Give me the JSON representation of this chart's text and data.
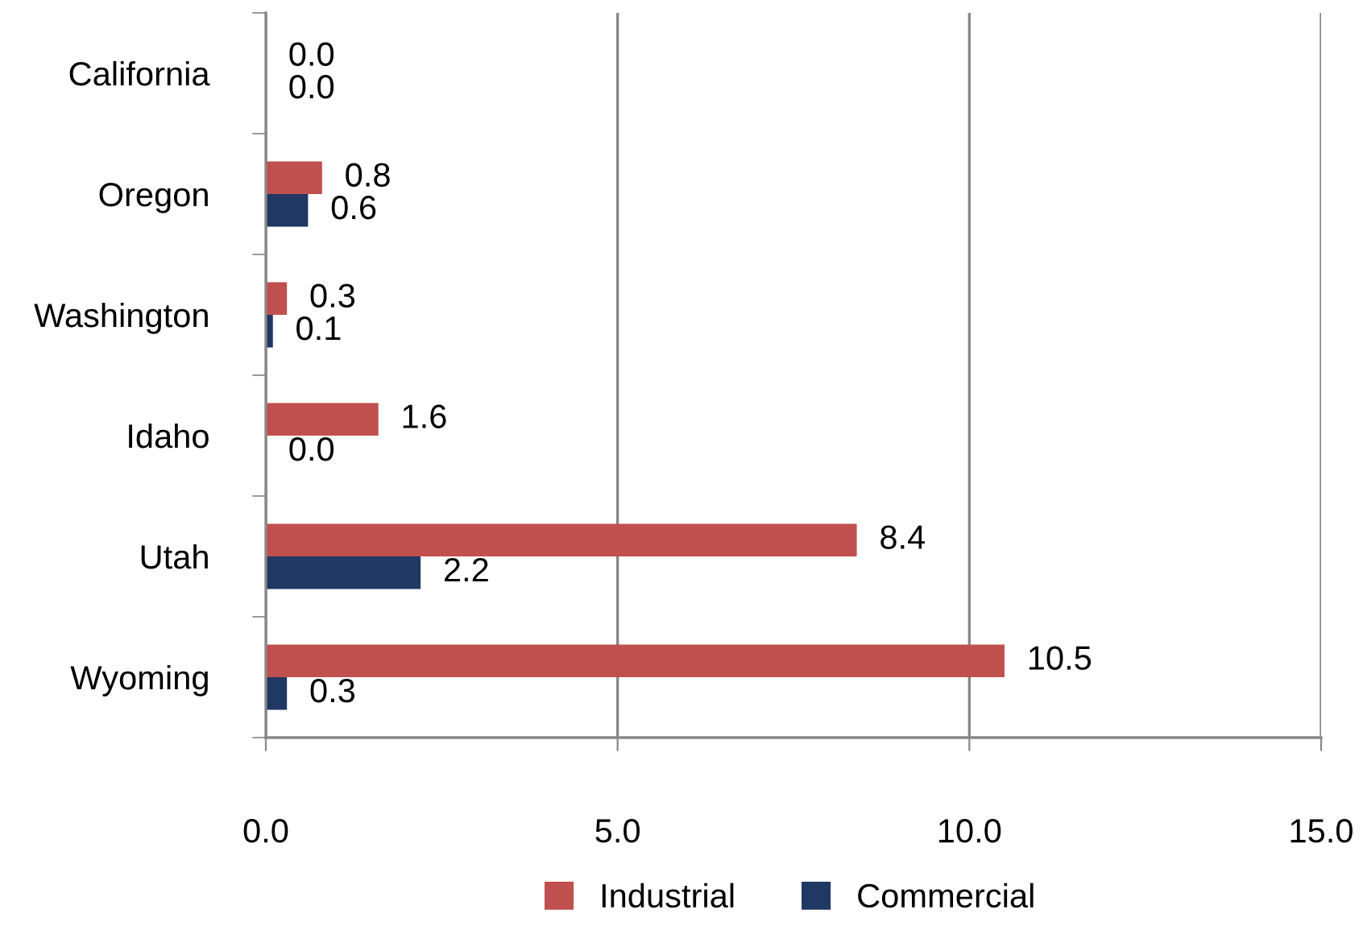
{
  "chart_data": {
    "type": "bar",
    "orientation": "horizontal",
    "categories": [
      "California",
      "Oregon",
      "Washington",
      "Idaho",
      "Utah",
      "Wyoming"
    ],
    "series": [
      {
        "name": "Industrial",
        "color": "#c0504d",
        "values": [
          0.0,
          0.8,
          0.3,
          1.6,
          8.4,
          10.5
        ],
        "value_labels": [
          "0.0",
          "0.8",
          "0.3",
          "1.6",
          "8.4",
          "10.5"
        ]
      },
      {
        "name": "Commercial",
        "color": "#1f3864",
        "values": [
          0.0,
          0.6,
          0.1,
          0.0,
          2.2,
          0.3
        ],
        "value_labels": [
          "0.0",
          "0.6",
          "0.1",
          "0.0",
          "2.2",
          "0.3"
        ]
      }
    ],
    "xlim": [
      0,
      15
    ],
    "xticks": [
      {
        "value": 0,
        "label": "0.0"
      },
      {
        "value": 5,
        "label": "5.0"
      },
      {
        "value": 10,
        "label": "10.0"
      },
      {
        "value": 15,
        "label": "15.0"
      }
    ],
    "grid": "x",
    "legend": "bottom"
  }
}
